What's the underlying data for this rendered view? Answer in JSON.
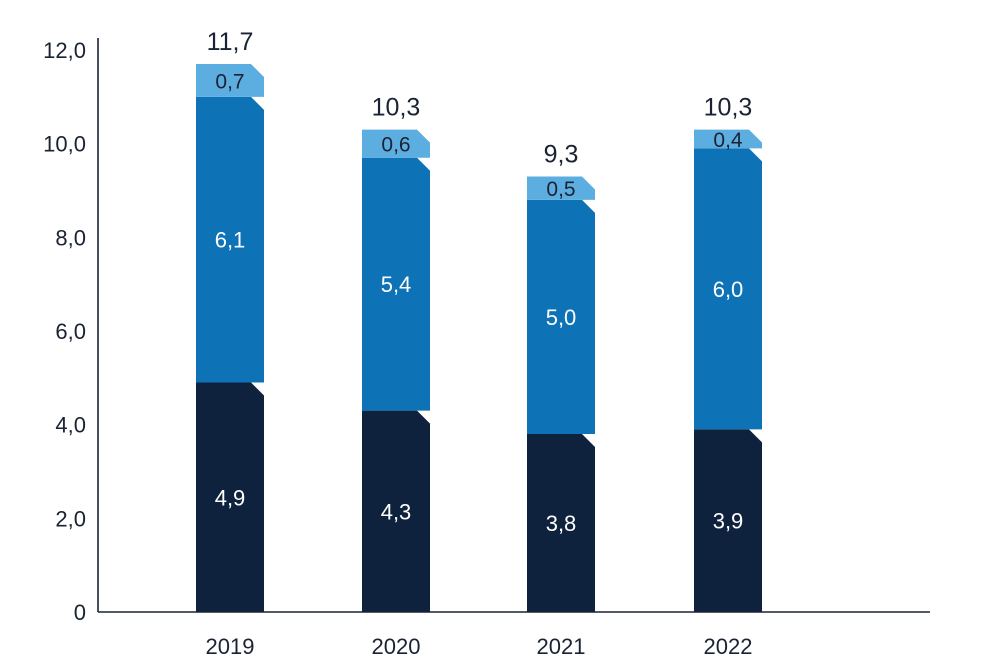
{
  "chart_data": {
    "type": "bar",
    "stacked": true,
    "categories": [
      "2019",
      "2020",
      "2021",
      "2022"
    ],
    "series": [
      {
        "values": [
          4.9,
          4.3,
          3.8,
          3.9
        ],
        "color": "#0f223d",
        "value_labels": [
          "4,9",
          "4,3",
          "3,8",
          "3,9"
        ]
      },
      {
        "values": [
          6.1,
          5.4,
          5.0,
          6.0
        ],
        "color": "#0e72b6",
        "value_labels": [
          "6,1",
          "5,4",
          "5,0",
          "6,0"
        ]
      },
      {
        "values": [
          0.7,
          0.6,
          0.5,
          0.4
        ],
        "color": "#5daee0",
        "value_labels": [
          "0,7",
          "0,6",
          "0,5",
          "0,4"
        ]
      }
    ],
    "totals": [
      11.7,
      10.3,
      9.3,
      10.3
    ],
    "total_labels": [
      "11,7",
      "10,3",
      "9,3",
      "10,3"
    ],
    "title": "",
    "xlabel": "",
    "ylabel": "",
    "ylim": [
      0,
      12
    ],
    "yticks": [
      0,
      2,
      4,
      6,
      8,
      10,
      12
    ],
    "ytick_labels": [
      "0",
      "2,0",
      "4,0",
      "6,0",
      "8,0",
      "10,0",
      "12,0"
    ],
    "grid": false,
    "legend": "none",
    "text_color_dark": "#1a2233",
    "text_color_light": "#ffffff"
  }
}
